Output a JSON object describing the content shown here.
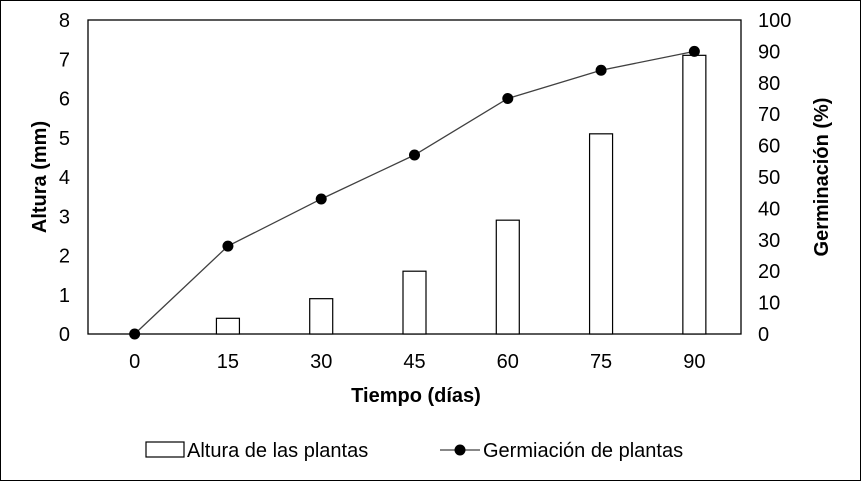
{
  "chart_data": {
    "type": "bar+line",
    "categories": [
      "0",
      "15",
      "30",
      "45",
      "60",
      "75",
      "90"
    ],
    "x": [
      0,
      15,
      30,
      45,
      60,
      75,
      90
    ],
    "xlabel": "Tiempo (días)",
    "series": [
      {
        "name": "Altura de las plantas",
        "kind": "bar",
        "axis": "left",
        "values": [
          0,
          0.4,
          0.9,
          1.6,
          2.9,
          5.1,
          7.1
        ]
      },
      {
        "name": "Germiación de plantas",
        "kind": "line",
        "axis": "right",
        "values": [
          0,
          28,
          43,
          57,
          75,
          84,
          90
        ]
      }
    ],
    "ylabel_left": "Altura (mm)",
    "ylim_left": [
      0,
      8
    ],
    "yticks_left": [
      "0",
      "1",
      "2",
      "3",
      "4",
      "5",
      "6",
      "7",
      "8"
    ],
    "ylabel_right": "Germinación (%)",
    "ylim_right": [
      0,
      100
    ],
    "yticks_right": [
      "0",
      "10",
      "20",
      "30",
      "40",
      "50",
      "60",
      "70",
      "80",
      "90",
      "100"
    ],
    "grid": false,
    "legend_position": "bottom",
    "colors": {
      "bar_fill": "#ffffff",
      "bar_stroke": "#000000",
      "line": "#404040",
      "marker": "#000000"
    }
  }
}
